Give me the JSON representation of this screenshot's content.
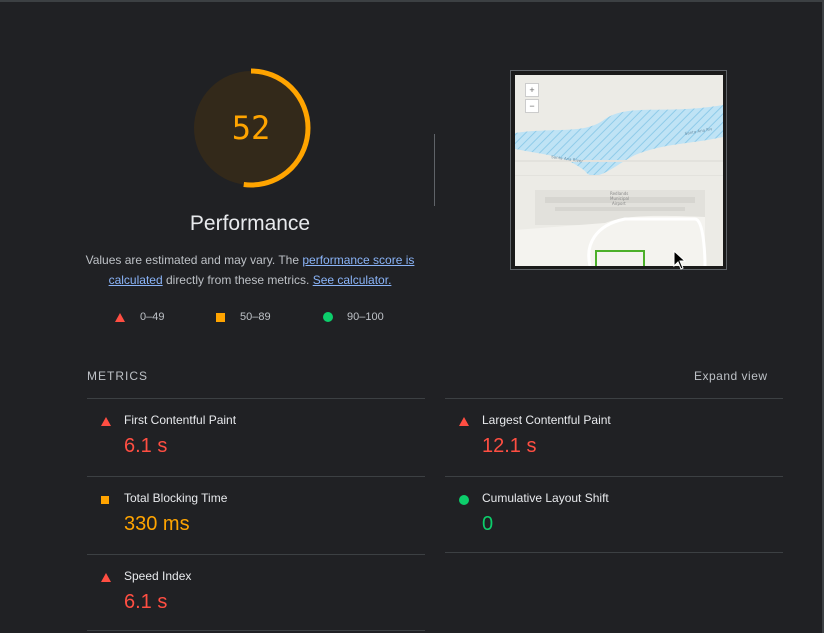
{
  "performance": {
    "score": "52",
    "score_fraction": 0.52,
    "title": "Performance",
    "desc_prefix": "Values are estimated and may vary. The ",
    "desc_link1": "performance score is calculated",
    "desc_middle": " directly from these metrics. ",
    "desc_link2": "See calculator.",
    "colors": {
      "fail": "#ff4e42",
      "average": "#ffa400",
      "pass": "#0cce6b"
    }
  },
  "legend": [
    {
      "icon": "triangle-red-icon",
      "label": "0–49"
    },
    {
      "icon": "square-orange-icon",
      "label": "50–89"
    },
    {
      "icon": "circle-green-icon",
      "label": "90–100"
    }
  ],
  "thumbnail": {
    "zoom_in": "+",
    "zoom_out": "−",
    "river_label": "Santa Ana River",
    "river_label_2": "Santa Ana Riv",
    "airport_label_1": "Redlands",
    "airport_label_2": "Municipal",
    "airport_label_3": "Airport"
  },
  "metrics": {
    "header": "METRICS",
    "expand": "Expand view",
    "items": [
      {
        "title": "First Contentful Paint",
        "value": "6.1 s",
        "rating": "fail",
        "icon": "triangle-red-icon"
      },
      {
        "title": "Largest Contentful Paint",
        "value": "12.1 s",
        "rating": "fail",
        "icon": "triangle-red-icon"
      },
      {
        "title": "Total Blocking Time",
        "value": "330 ms",
        "rating": "average",
        "icon": "square-orange-icon"
      },
      {
        "title": "Cumulative Layout Shift",
        "value": "0",
        "rating": "pass",
        "icon": "circle-green-icon"
      },
      {
        "title": "Speed Index",
        "value": "6.1 s",
        "rating": "fail",
        "icon": "triangle-red-icon"
      }
    ]
  }
}
